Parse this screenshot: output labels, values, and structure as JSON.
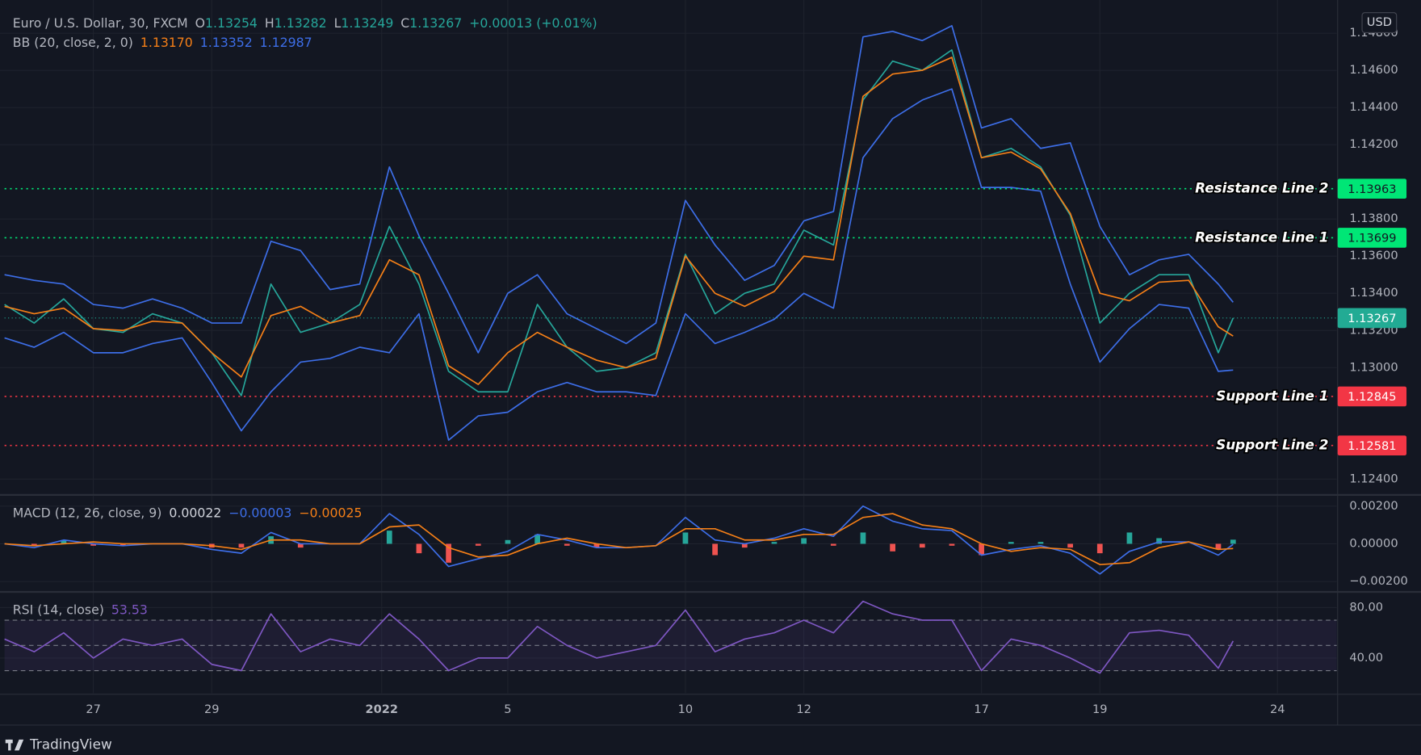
{
  "chart_data": [
    {
      "type": "line",
      "title": "Euro / U.S. Dollar, 30, FXCM",
      "ohlc": {
        "labels": [
          "O",
          "H",
          "L",
          "C"
        ],
        "values": [
          "1.13254",
          "1.13282",
          "1.13249",
          "1.13267"
        ]
      },
      "change": "+0.00013 (+0.01%)",
      "indicator": {
        "label": "BB (20, close, 2, 0)",
        "values": [
          "1.13170",
          "1.13352",
          "1.12987"
        ],
        "colors": [
          "#f57f17",
          "#3d6ee8",
          "#3d6ee8"
        ]
      },
      "currency": "USD",
      "x": [
        -1.5,
        -1,
        -0.5,
        0,
        0.5,
        1,
        1.5,
        2,
        2.5,
        3,
        3.5,
        4,
        4.5,
        5,
        5.5,
        6,
        6.5,
        7,
        7.5,
        8,
        8.5,
        9,
        9.5,
        10,
        10.5,
        11,
        11.5,
        12,
        12.5,
        13,
        13.5,
        14,
        14.5,
        15,
        15.5,
        16,
        16.5,
        17,
        17.5,
        18,
        18.5,
        19,
        19.25
      ],
      "xlim": [
        -1.5,
        21
      ],
      "xticks": [
        {
          "value": 0,
          "label": "27"
        },
        {
          "value": 2,
          "label": "29"
        },
        {
          "value": 4.87,
          "label": "2022",
          "bold": true
        },
        {
          "value": 7,
          "label": "5"
        },
        {
          "value": 10,
          "label": "10"
        },
        {
          "value": 12,
          "label": "12"
        },
        {
          "value": 15,
          "label": "17"
        },
        {
          "value": 17,
          "label": "19"
        },
        {
          "value": 20,
          "label": "24"
        }
      ],
      "ylim": [
        1.1232,
        1.1493
      ],
      "yticks": [
        {
          "value": 1.124,
          "label": "1.12400"
        },
        {
          "value": 1.13,
          "label": "1.13000"
        },
        {
          "value": 1.132,
          "label": "1.13200"
        },
        {
          "value": 1.134,
          "label": "1.13400"
        },
        {
          "value": 1.136,
          "label": "1.13600"
        },
        {
          "value": 1.138,
          "label": "1.13800"
        },
        {
          "value": 1.142,
          "label": "1.14200"
        },
        {
          "value": 1.144,
          "label": "1.14400"
        },
        {
          "value": 1.146,
          "label": "1.14600"
        },
        {
          "value": 1.148,
          "label": "1.14800"
        }
      ],
      "grid": true,
      "series": [
        {
          "color": "#3d6ee8",
          "values": [
            1.135,
            1.1347,
            1.1345,
            1.1334,
            1.1332,
            1.1337,
            1.1332,
            1.1324,
            1.1324,
            1.1368,
            1.1363,
            1.1342,
            1.1345,
            1.1408,
            1.1371,
            1.134,
            1.1308,
            1.134,
            1.135,
            1.1329,
            1.1321,
            1.1313,
            1.1324,
            1.139,
            1.1366,
            1.1347,
            1.1355,
            1.1379,
            1.1384,
            1.1478,
            1.1481,
            1.1476,
            1.1484,
            1.1429,
            1.1434,
            1.1418,
            1.1421,
            1.1376,
            1.135,
            1.1358,
            1.1361,
            1.1345,
            1.13352
          ]
        },
        {
          "color": "#3d6ee8",
          "values": [
            1.1316,
            1.1311,
            1.1319,
            1.1308,
            1.1308,
            1.1313,
            1.1316,
            1.1292,
            1.1266,
            1.1287,
            1.1303,
            1.1305,
            1.1311,
            1.1308,
            1.1329,
            1.1261,
            1.1274,
            1.1276,
            1.1287,
            1.1292,
            1.1287,
            1.1287,
            1.1285,
            1.1329,
            1.1313,
            1.1319,
            1.1326,
            1.134,
            1.1332,
            1.1413,
            1.1434,
            1.1444,
            1.145,
            1.1397,
            1.1397,
            1.1395,
            1.1345,
            1.1303,
            1.1321,
            1.1334,
            1.1332,
            1.1298,
            1.12987
          ]
        },
        {
          "color": "#26a69a",
          "values": [
            1.1334,
            1.1324,
            1.1337,
            1.1321,
            1.1319,
            1.1329,
            1.1324,
            1.1308,
            1.1285,
            1.1345,
            1.1319,
            1.1324,
            1.1334,
            1.1376,
            1.1345,
            1.1298,
            1.1287,
            1.1287,
            1.1334,
            1.1311,
            1.1298,
            1.13,
            1.1308,
            1.1361,
            1.1329,
            1.134,
            1.1345,
            1.1374,
            1.1366,
            1.1444,
            1.1465,
            1.146,
            1.1471,
            1.1413,
            1.1418,
            1.1408,
            1.1382,
            1.1324,
            1.134,
            1.135,
            1.135,
            1.1308,
            1.13267
          ]
        },
        {
          "color": "#f57f17",
          "values": [
            1.1333,
            1.1329,
            1.1332,
            1.1321,
            1.132,
            1.1325,
            1.1324,
            1.1308,
            1.1295,
            1.1328,
            1.1333,
            1.1324,
            1.1328,
            1.1358,
            1.135,
            1.1301,
            1.1291,
            1.1308,
            1.1319,
            1.1311,
            1.1304,
            1.13,
            1.1305,
            1.136,
            1.134,
            1.1333,
            1.1341,
            1.136,
            1.1358,
            1.1446,
            1.1458,
            1.146,
            1.1467,
            1.1413,
            1.1416,
            1.1407,
            1.1383,
            1.134,
            1.1336,
            1.1346,
            1.1347,
            1.1322,
            1.1317
          ]
        }
      ],
      "lines": [
        {
          "name": "Resistance Line 2",
          "value": 1.13963,
          "color": "#00e676"
        },
        {
          "name": "Resistance Line 1",
          "value": 1.13699,
          "color": "#00e676"
        },
        {
          "name": "Support Line 1",
          "value": 1.12845,
          "color": "#f23645"
        },
        {
          "name": "Support Line 2",
          "value": 1.12581,
          "color": "#f23645"
        }
      ],
      "last": {
        "value": 1.13267,
        "color": "#22ab94"
      }
    },
    {
      "type": "line",
      "title": "MACD (12, 26, close, 9)",
      "indicator": {
        "values": [
          "0.00022",
          "−0.00003",
          "−0.00025"
        ],
        "colors": [
          "#d1d4dc",
          "#3d6ee8",
          "#f57f17"
        ]
      },
      "ylim": [
        -0.0025,
        0.0025
      ],
      "yticks": [
        {
          "value": 0.002,
          "label": "0.00200"
        },
        {
          "value": 0,
          "label": "0.00000"
        },
        {
          "value": -0.002,
          "label": "−0.00200"
        }
      ],
      "grid": true,
      "series": [
        {
          "style": "histogram",
          "color": "#26a69a",
          "negative_color": "#ef5350",
          "values": [
            0,
            -0.0001,
            0.0002,
            -0.0001,
            -0.0001,
            0,
            0,
            -0.0002,
            -0.0002,
            0.0004,
            -0.0002,
            0,
            0,
            0.0007,
            -0.0005,
            -0.001,
            -0.0001,
            0.0002,
            0.0005,
            -0.0001,
            -0.0002,
            0,
            0,
            0.0006,
            -0.0006,
            -0.0002,
            0.0001,
            0.0003,
            -0.0001,
            0.0006,
            -0.0004,
            -0.0002,
            -0.0001,
            -0.0006,
            0.0001,
            0.0001,
            -0.0002,
            -0.0005,
            0.0006,
            0.0003,
            0,
            -0.0003,
            0.00022
          ]
        },
        {
          "color": "#3d6ee8",
          "values": [
            0,
            -0.0002,
            0.0002,
            0,
            -0.0001,
            0,
            0,
            -0.0003,
            -0.0005,
            0.0006,
            0,
            0,
            0,
            0.0016,
            0.0005,
            -0.0012,
            -0.0008,
            -0.0004,
            0.0005,
            0.0002,
            -0.0002,
            -0.0002,
            -0.0001,
            0.0014,
            0.0002,
            0,
            0.0003,
            0.0008,
            0.0004,
            0.002,
            0.0012,
            0.0008,
            0.0007,
            -0.0006,
            -0.0003,
            -0.0001,
            -0.0005,
            -0.0016,
            -0.0004,
            0.0001,
            0.0001,
            -0.0006,
            -3e-05
          ]
        },
        {
          "color": "#f57f17",
          "values": [
            0,
            -0.0001,
            0,
            0.0001,
            0,
            0,
            0,
            -0.0001,
            -0.0003,
            0.0002,
            0.0002,
            0,
            0,
            0.0009,
            0.001,
            -0.0002,
            -0.0007,
            -0.0006,
            0,
            0.0003,
            0,
            -0.0002,
            -0.0001,
            0.0008,
            0.0008,
            0.0002,
            0.0002,
            0.0005,
            0.0005,
            0.0014,
            0.0016,
            0.001,
            0.0008,
            0,
            -0.0004,
            -0.0002,
            -0.0003,
            -0.0011,
            -0.001,
            -0.0002,
            0.0001,
            -0.0003,
            -0.00025
          ]
        }
      ]
    },
    {
      "type": "line",
      "title": "RSI (14, close)",
      "indicator": {
        "values": [
          "53.53"
        ],
        "colors": [
          "#7e57c2"
        ]
      },
      "ylim": [
        12,
        91
      ],
      "yticks": [
        {
          "value": 40,
          "label": "40.00"
        },
        {
          "value": 80,
          "label": "80.00"
        }
      ],
      "grid": true,
      "levels": [
        70,
        50,
        30
      ],
      "series": [
        {
          "color": "#7e57c2",
          "values": [
            55,
            45,
            60,
            40,
            55,
            50,
            55,
            35,
            30,
            75,
            45,
            55,
            50,
            75,
            55,
            30,
            40,
            40,
            65,
            50,
            40,
            45,
            50,
            78,
            45,
            55,
            60,
            70,
            60,
            85,
            75,
            70,
            70,
            30,
            55,
            50,
            40,
            28,
            60,
            62,
            58,
            32,
            53.53
          ]
        }
      ]
    }
  ],
  "footer": {
    "brand": "TradingView"
  }
}
